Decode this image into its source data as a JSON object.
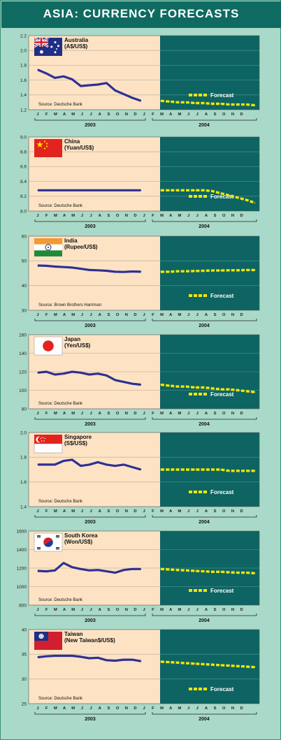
{
  "title": "ASIA: CURRENCY FORECASTS",
  "month_letters": [
    "J",
    "F",
    "M",
    "A",
    "M",
    "J",
    "J",
    "A",
    "S",
    "O",
    "N",
    "D"
  ],
  "year_labels": [
    "2003",
    "2004"
  ],
  "legend_label": "Forecast",
  "colors": {
    "actual": "#2e3192",
    "forecast": "#f4e600",
    "actual_bg": "#fde3c4",
    "forecast_bg": "#0d6462",
    "frame": "#a9d9c8",
    "title_bg": "#0f6b62"
  },
  "chart_data": [
    {
      "type": "line",
      "country": "Australia",
      "unit": "(A$/US$)",
      "flag": "australia-flag",
      "source": "Source: Deutsche Bank",
      "yticks": [
        "2.2",
        "2.0",
        "1.8",
        "1.6",
        "1.4",
        "1.2"
      ],
      "ylim": [
        1.2,
        2.2
      ],
      "actual": [
        1.74,
        1.69,
        1.63,
        1.65,
        1.61,
        1.52,
        1.53,
        1.54,
        1.56,
        1.46,
        1.41,
        1.36,
        1.32
      ],
      "forecast": [
        1.32,
        1.31,
        1.3,
        1.3,
        1.29,
        1.29,
        1.28,
        1.28,
        1.27,
        1.27,
        1.27,
        1.26
      ]
    },
    {
      "type": "line",
      "country": "China",
      "unit": "(Yuan/US$)",
      "flag": "china-flag",
      "source": "Source: Deutsche Bank",
      "yticks": [
        "9.0",
        "8.8",
        "8.6",
        "8.4",
        "8.2",
        "8.0"
      ],
      "ylim": [
        8.0,
        9.0
      ],
      "actual": [
        8.28,
        8.28,
        8.28,
        8.28,
        8.28,
        8.28,
        8.28,
        8.28,
        8.28,
        8.28,
        8.28,
        8.28,
        8.28
      ],
      "forecast": [
        8.28,
        8.28,
        8.28,
        8.28,
        8.28,
        8.28,
        8.27,
        8.24,
        8.21,
        8.18,
        8.15,
        8.11
      ]
    },
    {
      "type": "line",
      "country": "India",
      "unit": "(Rupee/US$)",
      "flag": "india-flag",
      "source": "Source: Brown Brothers Harriman",
      "yticks": [
        "60",
        "50",
        "40",
        "30"
      ],
      "ylim": [
        30,
        60
      ],
      "actual": [
        48.1,
        48.0,
        47.7,
        47.5,
        47.3,
        46.8,
        46.3,
        46.2,
        46.0,
        45.6,
        45.5,
        45.7,
        45.6
      ],
      "forecast": [
        45.6,
        45.6,
        45.8,
        45.8,
        45.9,
        46.0,
        46.1,
        46.1,
        46.2,
        46.2,
        46.3,
        46.3
      ]
    },
    {
      "type": "line",
      "country": "Japan",
      "unit": "(Yen/US$)",
      "flag": "japan-flag",
      "source": "Source: Deutsche Bank",
      "yticks": [
        "160",
        "140",
        "120",
        "100",
        "80"
      ],
      "ylim": [
        80,
        160
      ],
      "actual": [
        119,
        120,
        117,
        118,
        120,
        119,
        117,
        118,
        116,
        111,
        109,
        107,
        106
      ],
      "forecast": [
        106,
        105,
        104,
        104,
        103,
        103,
        102,
        101,
        101,
        100,
        99,
        98
      ]
    },
    {
      "type": "line",
      "country": "Singapore",
      "unit": "(S$/US$)",
      "flag": "singapore-flag",
      "source": "Source: Deutsche Bank",
      "yticks": [
        "2.0",
        "1.8",
        "1.6",
        "1.4"
      ],
      "ylim": [
        1.4,
        2.0
      ],
      "actual": [
        1.74,
        1.74,
        1.74,
        1.77,
        1.78,
        1.73,
        1.74,
        1.76,
        1.74,
        1.73,
        1.74,
        1.72,
        1.7
      ],
      "forecast": [
        1.7,
        1.7,
        1.7,
        1.7,
        1.7,
        1.7,
        1.7,
        1.7,
        1.69,
        1.69,
        1.69,
        1.69
      ]
    },
    {
      "type": "line",
      "country": "South Korea",
      "unit": "(Won/US$)",
      "flag": "south-korea-flag",
      "source": "Source: Deutsche Bank",
      "yticks": [
        "1600",
        "1400",
        "1200",
        "1000",
        "800"
      ],
      "ylim": [
        800,
        1600
      ],
      "actual": [
        1170,
        1165,
        1175,
        1255,
        1210,
        1190,
        1175,
        1180,
        1165,
        1150,
        1180,
        1190,
        1190
      ],
      "forecast": [
        1190,
        1185,
        1180,
        1175,
        1170,
        1165,
        1160,
        1160,
        1155,
        1150,
        1150,
        1145
      ]
    },
    {
      "type": "line",
      "country": "Taiwan",
      "unit": "(New Taiwan$/US$)",
      "flag": "taiwan-flag",
      "source": "Source: Deutsche Bank",
      "yticks": [
        "40",
        "35",
        "30",
        "25"
      ],
      "ylim": [
        25,
        40
      ],
      "actual": [
        34.4,
        34.6,
        34.7,
        34.7,
        34.7,
        34.5,
        34.2,
        34.3,
        33.8,
        33.7,
        33.9,
        33.9,
        33.6
      ],
      "forecast": [
        33.5,
        33.4,
        33.3,
        33.2,
        33.1,
        33.0,
        32.9,
        32.8,
        32.7,
        32.6,
        32.5,
        32.4
      ]
    }
  ]
}
